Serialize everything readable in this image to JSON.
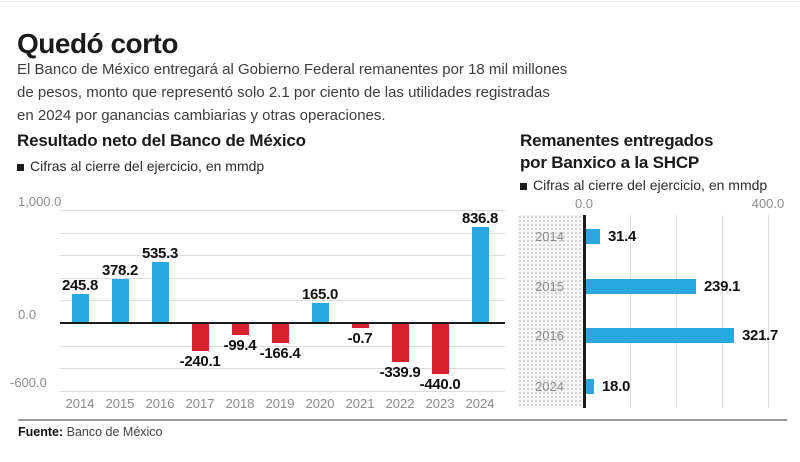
{
  "header": {
    "title": "Quedó corto",
    "description_lines": [
      "El Banco de México entregará al Gobierno Federal remanentes por 18 mil millones",
      "de pesos, monto que representó solo 2.1 por ciento de las utilidades registradas",
      "en 2024 por ganancias cambiarias y otras operaciones."
    ]
  },
  "colors": {
    "positive_bar": "#29a8e0",
    "negative_bar": "#d7222b",
    "axis": "#1a1a1a",
    "grid": "#dcdcdc",
    "muted_text": "#8c8c8c",
    "value_text": "#111111"
  },
  "chart_data": [
    {
      "type": "bar",
      "title": "Resultado neto del Banco de México",
      "legend": "Cifras al cierre del ejercicio, en mmdp",
      "categories": [
        "2014",
        "2015",
        "2016",
        "2017",
        "2018",
        "2019",
        "2020",
        "2021",
        "2022",
        "2023",
        "2024"
      ],
      "values": [
        245.8,
        378.2,
        535.3,
        -240.1,
        -99.4,
        -166.4,
        165.0,
        -0.7,
        -339.9,
        -440.0,
        836.8
      ],
      "ylim": [
        -600,
        1000
      ],
      "grid_step": 200,
      "y_ticks": [
        {
          "value": 1000,
          "label": "1,000.0"
        },
        {
          "value": 0,
          "label": "0.0"
        },
        {
          "value": -600,
          "label": "-600.0"
        }
      ],
      "grid": true,
      "legend_position": "top-left"
    },
    {
      "type": "bar-horizontal",
      "title_lines": [
        "Remanentes entregados",
        "por Banxico a la SHCP"
      ],
      "legend": "Cifras al cierre del ejercicio, en mmdp",
      "categories": [
        "2014",
        "2015",
        "2016",
        "2024"
      ],
      "values": [
        31.4,
        239.1,
        321.7,
        18.0
      ],
      "xlim": [
        0,
        400
      ],
      "grid_step": 100,
      "x_ticks": [
        {
          "value": 0,
          "label": "0.0"
        },
        {
          "value": 400,
          "label": "400.0"
        }
      ],
      "grid": true,
      "legend_position": "top-left"
    }
  ],
  "source": {
    "label": "Fuente:",
    "text": " Banco de México"
  }
}
